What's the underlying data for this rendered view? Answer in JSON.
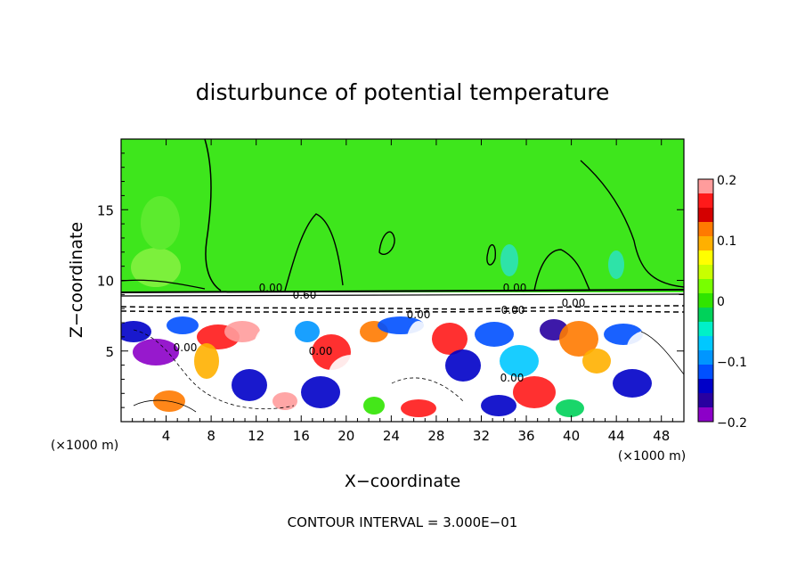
{
  "chart_data": {
    "type": "heatmap",
    "title": "disturbunce of potential temperature",
    "xlabel": "X−coordinate",
    "ylabel": "Z−coordinate",
    "x_unit_label_left": "(×1000 m)",
    "x_unit_label_right": "(×1000 m)",
    "xlim": [
      0,
      50
    ],
    "ylim": [
      0,
      20
    ],
    "x_ticks": [
      4,
      8,
      12,
      16,
      20,
      24,
      28,
      32,
      36,
      40,
      44,
      48
    ],
    "x_tick_labels": [
      "4",
      "8",
      "12",
      "16",
      "20",
      "24",
      "28",
      "32",
      "36",
      "40",
      "44",
      "48"
    ],
    "y_ticks": [
      5,
      10,
      15
    ],
    "y_tick_labels": [
      "5",
      "10",
      "15"
    ],
    "colorbar": {
      "range": [
        -0.2,
        0.2
      ],
      "tick_values": [
        0.2,
        0.1,
        0,
        -0.1,
        -0.2
      ],
      "tick_labels": [
        "0.2",
        "0.1",
        "0",
        "−0.1",
        "−0.2"
      ],
      "colors": [
        "#ff9c9c",
        "#ff1a1a",
        "#d40000",
        "#ff7a00",
        "#ffb000",
        "#ffff00",
        "#c8ff00",
        "#78ff00",
        "#30e400",
        "#00d25a",
        "#00f0c8",
        "#00c8ff",
        "#0096ff",
        "#0050ff",
        "#0000c8",
        "#2800a0",
        "#8c00c8"
      ]
    },
    "contour_labels": [
      "0.00",
      "0.60",
      "0.00",
      "0.00",
      "0.00",
      "0.00",
      "0.00",
      "0.00",
      "0.00"
    ],
    "footer": "CONTOUR INTERVAL = 3.000E−01"
  }
}
